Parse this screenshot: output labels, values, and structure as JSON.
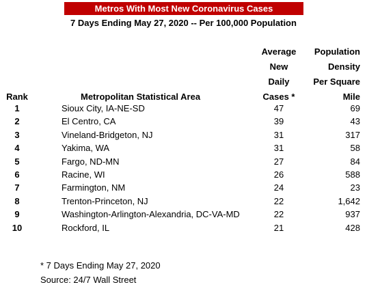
{
  "header": {
    "title": "Metros With Most New Coronavirus Cases",
    "subtitle": "7 Days Ending May 27, 2020 -- Per 100,000 Population"
  },
  "table": {
    "columns": [
      [
        "Rank"
      ],
      [
        "Metropolitan Statistical Area"
      ],
      [
        "Average",
        "New",
        "Daily",
        "Cases *"
      ],
      [
        "Population",
        "Density",
        "Per Square",
        "Mile"
      ]
    ],
    "rows": [
      [
        "1",
        "Sioux City, IA-NE-SD",
        "47",
        "69"
      ],
      [
        "2",
        "El Centro, CA",
        "39",
        "43"
      ],
      [
        "3",
        "Vineland-Bridgeton, NJ",
        "31",
        "317"
      ],
      [
        "4",
        "Yakima, WA",
        "31",
        "58"
      ],
      [
        "5",
        "Fargo, ND-MN",
        "27",
        "84"
      ],
      [
        "6",
        "Racine, WI",
        "26",
        "588"
      ],
      [
        "7",
        "Farmington, NM",
        "24",
        "23"
      ],
      [
        "8",
        "Trenton-Princeton, NJ",
        "22",
        "1,642"
      ],
      [
        "9",
        "Washington-Arlington-Alexandria, DC-VA-MD",
        "22",
        "937"
      ],
      [
        "10",
        "Rockford, IL",
        "21",
        "428"
      ]
    ]
  },
  "footer": {
    "notes": [
      "* 7 Days Ending May 27, 2020",
      "Source: 24/7 Wall Street"
    ]
  }
}
